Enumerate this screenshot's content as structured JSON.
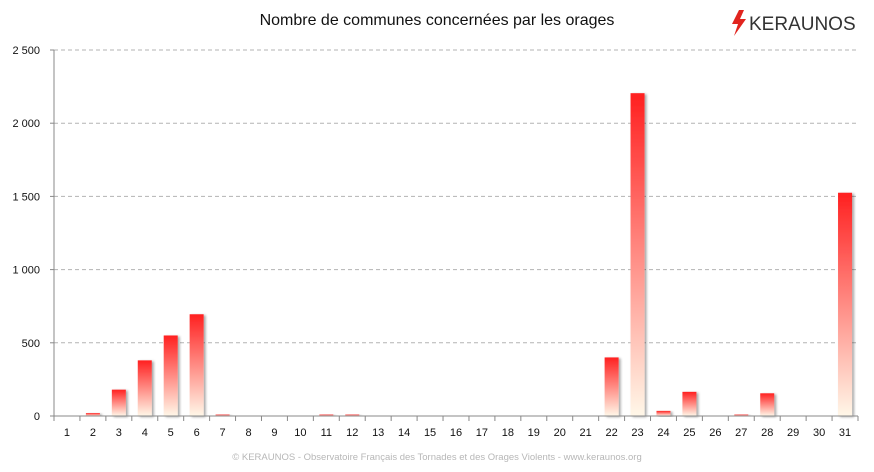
{
  "chart_data": {
    "type": "bar",
    "title": "Nombre de communes concernées par les orages",
    "xlabel": "",
    "ylabel": "",
    "categories": [
      "1",
      "2",
      "3",
      "4",
      "5",
      "6",
      "7",
      "8",
      "9",
      "10",
      "11",
      "12",
      "13",
      "14",
      "15",
      "16",
      "17",
      "18",
      "19",
      "20",
      "21",
      "22",
      "23",
      "24",
      "25",
      "26",
      "27",
      "28",
      "29",
      "30",
      "31"
    ],
    "values": [
      0,
      20,
      180,
      380,
      550,
      695,
      10,
      2,
      2,
      2,
      10,
      10,
      3,
      2,
      2,
      2,
      2,
      2,
      2,
      2,
      2,
      400,
      2205,
      35,
      165,
      2,
      10,
      155,
      2,
      2,
      1525
    ],
    "ylim": [
      0,
      2500
    ],
    "yticks": [
      0,
      500,
      1000,
      1500,
      2000,
      2500
    ],
    "ytick_labels": [
      "0",
      "500",
      "1 000",
      "1 500",
      "2 000",
      "2 500"
    ],
    "grid": "horizontal-dashed",
    "legend": "none",
    "bar_color_top": "#ff2020",
    "bar_color_bottom": "#fff7e8"
  },
  "brand": {
    "name": "KERAUNOS",
    "accent": "#e1241e"
  },
  "footer": "© KERAUNOS - Observatoire Français des Tornades et des Orages Violents - www.keraunos.org"
}
